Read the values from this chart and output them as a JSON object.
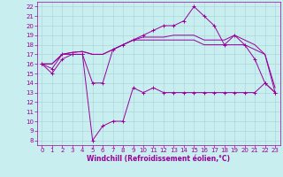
{
  "background_color": "#c8eef0",
  "grid_color": "#a8d0d8",
  "line_color": "#990099",
  "marker_color": "#990099",
  "xlabel": "Windchill (Refroidissement éolien,°C)",
  "xlabel_color": "#990099",
  "xlabel_fontsize": 5.5,
  "tick_color": "#990099",
  "tick_fontsize": 5,
  "ylim": [
    7.5,
    22.5
  ],
  "xlim": [
    -0.5,
    23.5
  ],
  "yticks": [
    8,
    9,
    10,
    11,
    12,
    13,
    14,
    15,
    16,
    17,
    18,
    19,
    20,
    21,
    22
  ],
  "xticks": [
    0,
    1,
    2,
    3,
    4,
    5,
    6,
    7,
    8,
    9,
    10,
    11,
    12,
    13,
    14,
    15,
    16,
    17,
    18,
    19,
    20,
    21,
    22,
    23
  ],
  "series": [
    {
      "x": [
        0,
        1,
        2,
        3,
        4,
        5,
        6,
        7,
        8,
        9,
        10,
        11,
        12,
        13,
        14,
        15,
        16,
        17,
        18,
        19,
        20,
        21,
        22,
        23
      ],
      "y": [
        16,
        15,
        16.5,
        17,
        17,
        8,
        9.5,
        10,
        10,
        13.5,
        13,
        13.5,
        13,
        13,
        13,
        13,
        13,
        13,
        13,
        13,
        13,
        13,
        14,
        13
      ],
      "has_marker": true
    },
    {
      "x": [
        0,
        1,
        2,
        3,
        4,
        5,
        6,
        7,
        8,
        9,
        10,
        11,
        12,
        13,
        14,
        15,
        16,
        17,
        18,
        19,
        20,
        21,
        22,
        23
      ],
      "y": [
        16,
        15.5,
        17,
        17,
        17,
        14,
        14,
        17.5,
        18,
        18.5,
        19,
        19.5,
        20,
        20,
        20.5,
        22,
        21,
        20,
        18,
        19,
        18,
        16.5,
        14,
        13
      ],
      "has_marker": true
    },
    {
      "x": [
        0,
        1,
        2,
        3,
        4,
        5,
        6,
        7,
        8,
        9,
        10,
        11,
        12,
        13,
        14,
        15,
        16,
        17,
        18,
        19,
        20,
        21,
        22,
        23
      ],
      "y": [
        16,
        16,
        17,
        17.2,
        17.3,
        17,
        17,
        17.5,
        18,
        18.5,
        18.5,
        18.5,
        18.5,
        18.5,
        18.5,
        18.5,
        18,
        18,
        18,
        18,
        18,
        17.5,
        17,
        13
      ],
      "has_marker": false
    },
    {
      "x": [
        0,
        1,
        2,
        3,
        4,
        5,
        6,
        7,
        8,
        9,
        10,
        11,
        12,
        13,
        14,
        15,
        16,
        17,
        18,
        19,
        20,
        21,
        22,
        23
      ],
      "y": [
        16,
        16,
        17,
        17.2,
        17.3,
        17,
        17,
        17.5,
        18,
        18.5,
        18.8,
        18.8,
        18.8,
        19,
        19,
        19,
        18.5,
        18.5,
        18.5,
        19,
        18.5,
        18,
        17,
        13.5
      ],
      "has_marker": false
    }
  ]
}
